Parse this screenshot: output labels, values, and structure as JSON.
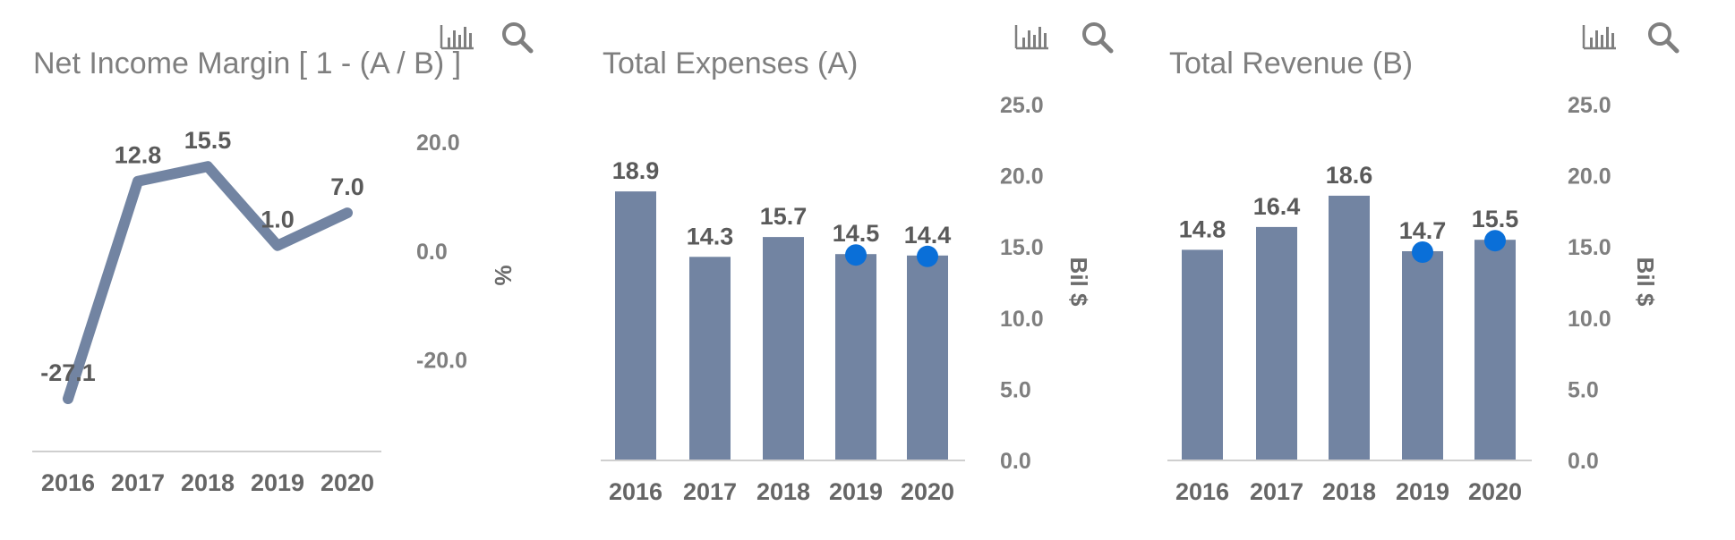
{
  "icons": {
    "chart_toggle": "bar-chart-icon",
    "zoom": "magnifier-icon",
    "icon_color": "#7f7f7f"
  },
  "colors": {
    "series": "#7284a2",
    "marker": "#0a6fd8",
    "axis": "#cfcfcf"
  },
  "chart_data": [
    {
      "type": "line",
      "title": "Net Income Margin [ 1 - (A / B) ]",
      "categories": [
        "2016",
        "2017",
        "2018",
        "2019",
        "2020"
      ],
      "values": [
        -27.1,
        12.8,
        15.5,
        1.0,
        7.0
      ],
      "labels": [
        "-27.1",
        "12.8",
        "15.5",
        "1.0",
        "7.0"
      ],
      "ylim": [
        -33,
        28
      ],
      "yticks": [
        20.0,
        0.0,
        -20.0
      ],
      "ytick_labels": [
        "20.0",
        "0.0",
        "-20.0"
      ],
      "ylabel": "%",
      "grid": false
    },
    {
      "type": "bar",
      "title": "Total Expenses (A)",
      "categories": [
        "2016",
        "2017",
        "2018",
        "2019",
        "2020"
      ],
      "values": [
        18.9,
        14.3,
        15.7,
        14.5,
        14.4
      ],
      "labels": [
        "18.9",
        "14.3",
        "15.7",
        "14.5",
        "14.4"
      ],
      "markers": [
        false,
        false,
        false,
        true,
        true
      ],
      "ylim": [
        0,
        25
      ],
      "yticks": [
        25.0,
        20.0,
        15.0,
        10.0,
        5.0,
        0.0
      ],
      "ytick_labels": [
        "25.0",
        "20.0",
        "15.0",
        "10.0",
        "5.0",
        "0.0"
      ],
      "ylabel": "Bil $",
      "grid": false
    },
    {
      "type": "bar",
      "title": "Total Revenue (B)",
      "categories": [
        "2016",
        "2017",
        "2018",
        "2019",
        "2020"
      ],
      "values": [
        14.8,
        16.4,
        18.6,
        14.7,
        15.5
      ],
      "labels": [
        "14.8",
        "16.4",
        "18.6",
        "14.7",
        "15.5"
      ],
      "markers": [
        false,
        false,
        false,
        true,
        true
      ],
      "ylim": [
        0,
        25
      ],
      "yticks": [
        25.0,
        20.0,
        15.0,
        10.0,
        5.0,
        0.0
      ],
      "ytick_labels": [
        "25.0",
        "20.0",
        "15.0",
        "10.0",
        "5.0",
        "0.0"
      ],
      "ylabel": "Bil $",
      "grid": false
    }
  ]
}
